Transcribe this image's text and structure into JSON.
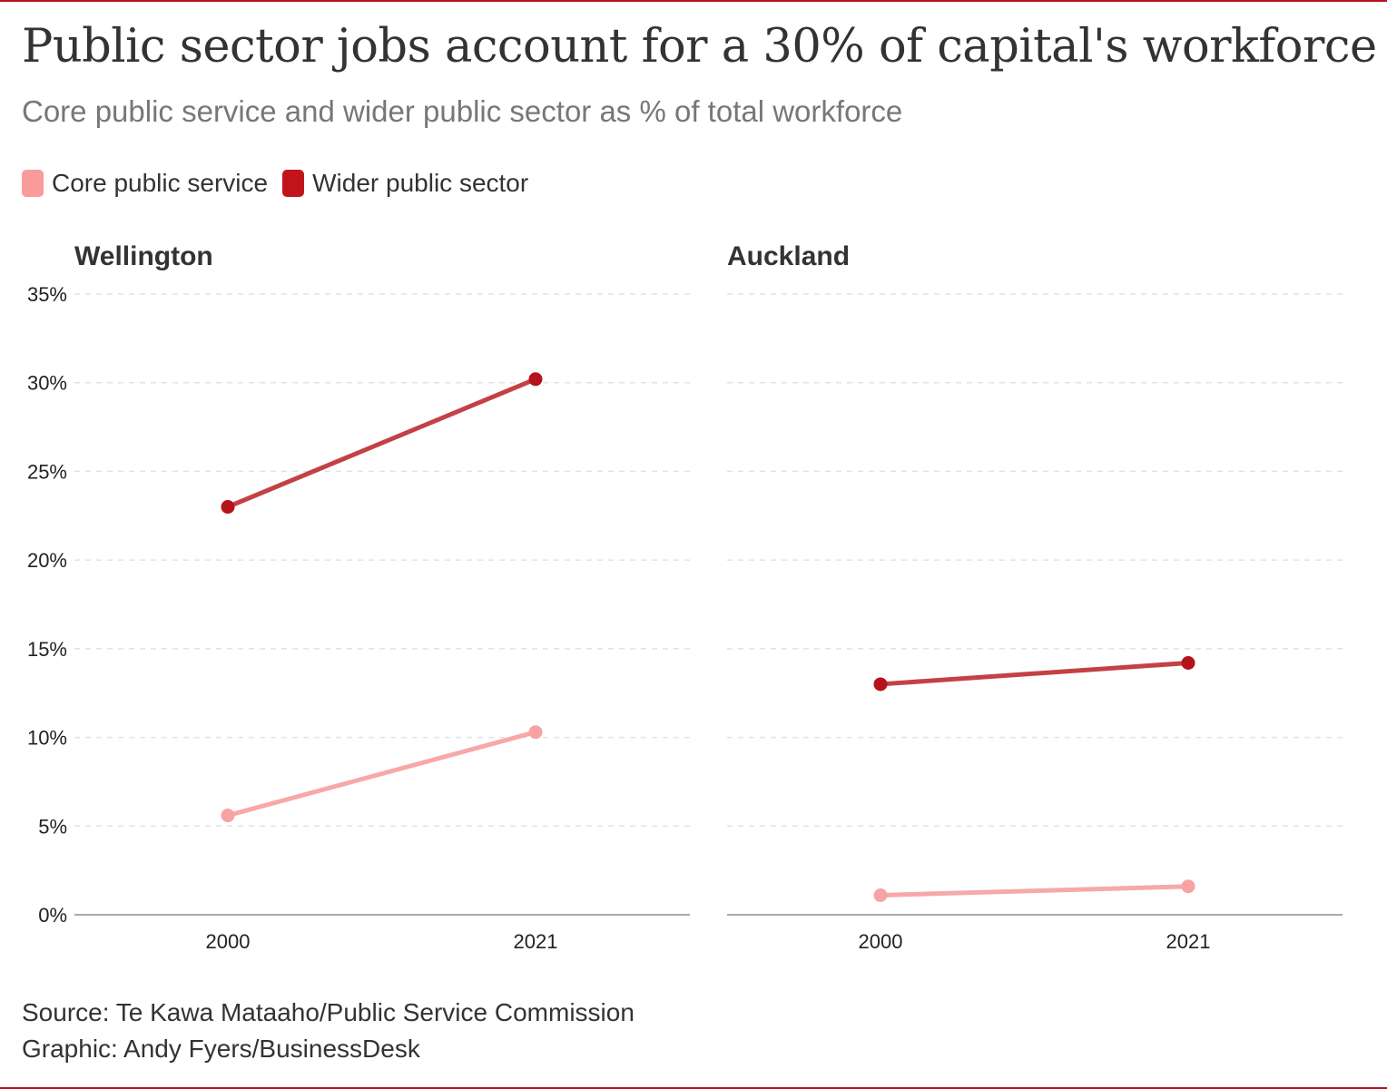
{
  "title": "Public sector jobs account for a 30% of capital's workforce",
  "subtitle": "Core public service and wider public sector as % of total workforce",
  "legend": [
    {
      "label": "Core public service",
      "color": "#fa9b9b"
    },
    {
      "label": "Wider public sector",
      "color": "#c1151b"
    }
  ],
  "footer": {
    "source": "Source: Te Kawa Mataaho/Public Service Commission",
    "credit": "Graphic: Andy Fyers/BusinessDesk"
  },
  "chart_data": {
    "type": "line",
    "ylim": [
      0,
      35
    ],
    "y_ticks": [
      0,
      5,
      10,
      15,
      20,
      25,
      30,
      35
    ],
    "y_tick_suffix": "%",
    "grid": true,
    "legend_position": "top-left",
    "line_colors": {
      "Core public service": "#f7a8a8",
      "Wider public sector": "#c34145"
    },
    "marker_colors": {
      "Core public service": "#f7a3a3",
      "Wider public sector": "#b5121b"
    },
    "panels": [
      {
        "title": "Wellington",
        "x": [
          "2000",
          "2021"
        ],
        "series": [
          {
            "name": "Core public service",
            "values": [
              5.6,
              10.3
            ]
          },
          {
            "name": "Wider public sector",
            "values": [
              23.0,
              30.2
            ]
          }
        ]
      },
      {
        "title": "Auckland",
        "x": [
          "2000",
          "2021"
        ],
        "series": [
          {
            "name": "Core public service",
            "values": [
              1.1,
              1.6
            ]
          },
          {
            "name": "Wider public sector",
            "values": [
              13.0,
              14.2
            ]
          }
        ]
      }
    ]
  }
}
